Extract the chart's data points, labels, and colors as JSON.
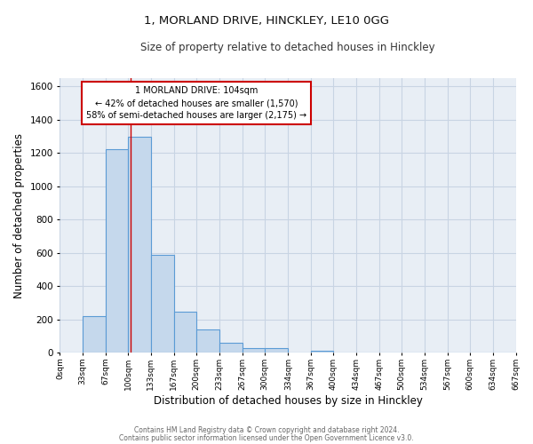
{
  "title": "1, MORLAND DRIVE, HINCKLEY, LE10 0GG",
  "subtitle": "Size of property relative to detached houses in Hinckley",
  "xlabel": "Distribution of detached houses by size in Hinckley",
  "ylabel": "Number of detached properties",
  "bin_edges": [
    0,
    33,
    67,
    100,
    133,
    167,
    200,
    233,
    267,
    300,
    334,
    367,
    400,
    434,
    467,
    500,
    534,
    567,
    600,
    634,
    667
  ],
  "bin_labels": [
    "0sqm",
    "33sqm",
    "67sqm",
    "100sqm",
    "133sqm",
    "167sqm",
    "200sqm",
    "233sqm",
    "267sqm",
    "300sqm",
    "334sqm",
    "367sqm",
    "400sqm",
    "434sqm",
    "467sqm",
    "500sqm",
    "534sqm",
    "567sqm",
    "600sqm",
    "634sqm",
    "667sqm"
  ],
  "bar_heights": [
    0,
    220,
    1225,
    1300,
    590,
    245,
    140,
    58,
    28,
    28,
    0,
    10,
    0,
    0,
    0,
    0,
    0,
    0,
    0,
    0
  ],
  "bar_color": "#c5d8ec",
  "bar_edge_color": "#5b9bd5",
  "grid_color": "#c8d4e3",
  "background_color": "#e8eef5",
  "ylim": [
    0,
    1650
  ],
  "yticks": [
    0,
    200,
    400,
    600,
    800,
    1000,
    1200,
    1400,
    1600
  ],
  "property_label": "1 MORLAND DRIVE: 104sqm",
  "annotation_line1": "← 42% of detached houses are smaller (1,570)",
  "annotation_line2": "58% of semi-detached houses are larger (2,175) →",
  "annotation_box_color": "#ffffff",
  "annotation_box_edge": "#cc0000",
  "vline_color": "#cc0000",
  "vline_x": 104,
  "footer_line1": "Contains HM Land Registry data © Crown copyright and database right 2024.",
  "footer_line2": "Contains public sector information licensed under the Open Government Licence v3.0."
}
